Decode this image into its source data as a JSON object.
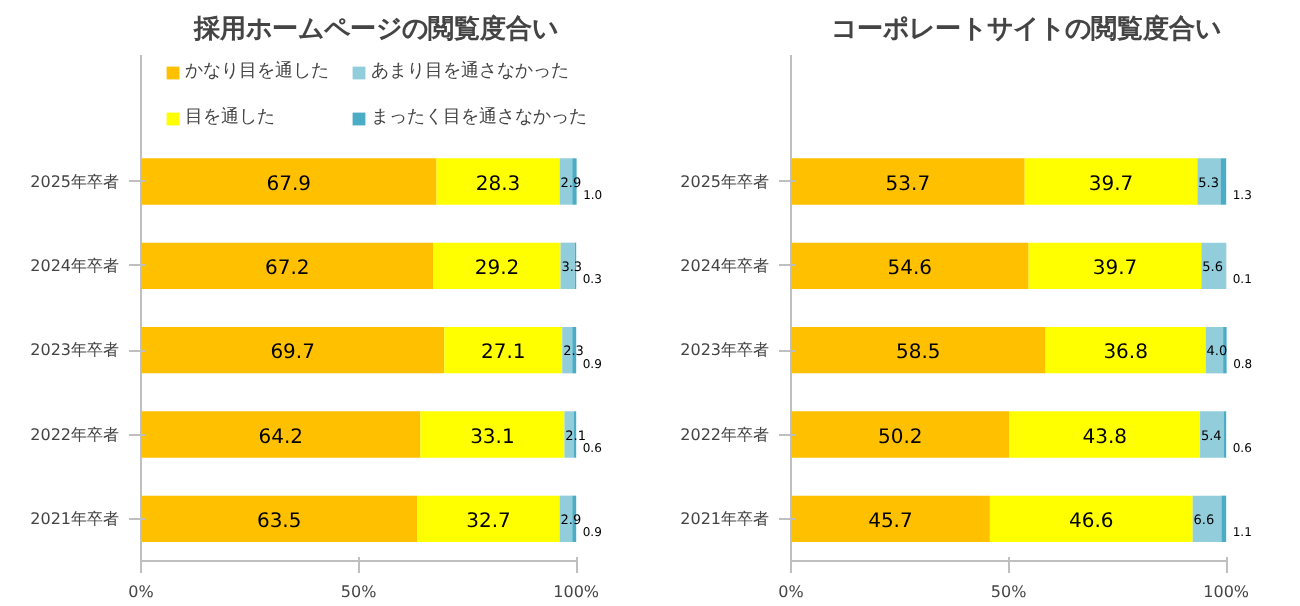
{
  "chart_data": [
    {
      "type": "bar",
      "orientation": "horizontal",
      "stacked": true,
      "title": "採用ホームページの閲覧度合い",
      "categories": [
        "2025年卒者",
        "2024年卒者",
        "2023年卒者",
        "2022年卒者",
        "2021年卒者"
      ],
      "xlim": [
        0,
        100
      ],
      "xticks": [
        {
          "value": 0,
          "label": "0%"
        },
        {
          "value": 50,
          "label": "50%"
        },
        {
          "value": 100,
          "label": "100%"
        }
      ],
      "grid": false,
      "legend": "top",
      "series": [
        {
          "name": "かなり目を通した",
          "color": "#ffc000",
          "values": [
            67.9,
            67.2,
            69.7,
            64.2,
            63.5
          ],
          "value_labels": [
            "67.9",
            "67.2",
            "69.7",
            "64.2",
            "63.5"
          ]
        },
        {
          "name": "目を通した",
          "color": "#ffff00",
          "values": [
            28.3,
            29.2,
            27.1,
            33.1,
            32.7
          ],
          "value_labels": [
            "28.3",
            "29.2",
            "27.1",
            "33.1",
            "32.7"
          ]
        },
        {
          "name": "あまり目を通さなかった",
          "color": "#92cddc",
          "values": [
            2.9,
            3.3,
            2.3,
            2.1,
            2.9
          ],
          "value_labels": [
            "2.9",
            "3.3",
            "2.3",
            "2.1",
            "2.9"
          ]
        },
        {
          "name": "まったく目を通さなかった",
          "color": "#4bacc6",
          "values": [
            1.0,
            0.3,
            0.9,
            0.6,
            0.9
          ],
          "value_labels": [
            "1.0",
            "0.3",
            "0.9",
            "0.6",
            "0.9"
          ]
        }
      ]
    },
    {
      "type": "bar",
      "orientation": "horizontal",
      "stacked": true,
      "title": "コーポレートサイトの閲覧度合い",
      "categories": [
        "2025年卒者",
        "2024年卒者",
        "2023年卒者",
        "2022年卒者",
        "2021年卒者"
      ],
      "xlim": [
        0,
        100
      ],
      "xticks": [
        {
          "value": 0,
          "label": "0%"
        },
        {
          "value": 50,
          "label": "50%"
        },
        {
          "value": 100,
          "label": "100%"
        }
      ],
      "grid": false,
      "legend": false,
      "series": [
        {
          "color": "#ffc000",
          "values": [
            53.7,
            54.6,
            58.5,
            50.2,
            45.7
          ],
          "value_labels": [
            "53.7",
            "54.6",
            "58.5",
            "50.2",
            "45.7"
          ]
        },
        {
          "color": "#ffff00",
          "values": [
            39.7,
            39.7,
            36.8,
            43.8,
            46.6
          ],
          "value_labels": [
            "39.7",
            "39.7",
            "36.8",
            "43.8",
            "46.6"
          ]
        },
        {
          "color": "#92cddc",
          "values": [
            5.3,
            5.6,
            4.0,
            5.4,
            6.6
          ],
          "value_labels": [
            "5.3",
            "5.6",
            "4.0",
            "5.4",
            "6.6"
          ]
        },
        {
          "color": "#4bacc6",
          "values": [
            1.3,
            0.1,
            0.8,
            0.6,
            1.1
          ],
          "value_labels": [
            "1.3",
            "0.1",
            "0.8",
            "0.6",
            "1.1"
          ]
        }
      ]
    }
  ]
}
